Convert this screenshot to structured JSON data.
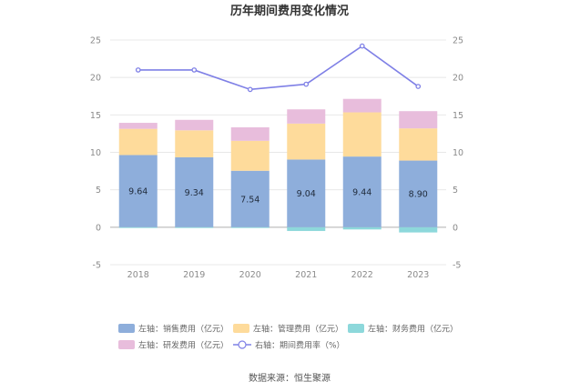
{
  "chart_data": {
    "type": "bar",
    "title": "历年期间费用变化情况",
    "categories": [
      "2018",
      "2019",
      "2020",
      "2021",
      "2022",
      "2023"
    ],
    "stacked": true,
    "series": [
      {
        "name": "左轴：销售费用（亿元）",
        "axis": "left",
        "type": "bar",
        "color": "#8eaedb",
        "values": [
          9.64,
          9.34,
          7.54,
          9.04,
          9.44,
          8.9
        ],
        "show_labels": true
      },
      {
        "name": "左轴：管理费用（亿元）",
        "axis": "left",
        "type": "bar",
        "color": "#fedb9b",
        "values": [
          3.5,
          3.6,
          4.0,
          4.8,
          5.9,
          4.3
        ],
        "show_labels": false
      },
      {
        "name": "左轴：财务费用（亿元）",
        "axis": "left",
        "type": "bar",
        "color": "#8dd8db",
        "values": [
          -0.1,
          -0.1,
          -0.1,
          -0.5,
          -0.3,
          -0.7
        ],
        "show_labels": false
      },
      {
        "name": "左轴：研发费用（亿元）",
        "axis": "left",
        "type": "bar",
        "color": "#e8bddc",
        "values": [
          0.8,
          1.4,
          1.8,
          1.9,
          1.8,
          2.3
        ],
        "show_labels": false
      },
      {
        "name": "右轴：期间费用率（%）",
        "axis": "right",
        "type": "line",
        "color": "#7f80e6",
        "values": [
          21.0,
          21.0,
          18.4,
          19.1,
          24.2,
          18.8
        ],
        "show_labels": false
      }
    ],
    "y_left": {
      "min": -5,
      "max": 25,
      "ticks": [
        25,
        20,
        15,
        10,
        5,
        0,
        -5
      ]
    },
    "y_right": {
      "min": -5,
      "max": 25,
      "ticks": [
        25,
        20,
        15,
        10,
        5,
        0,
        -5
      ]
    },
    "grid": true,
    "legend_position": "bottom",
    "source": "数据来源：恒生聚源"
  }
}
